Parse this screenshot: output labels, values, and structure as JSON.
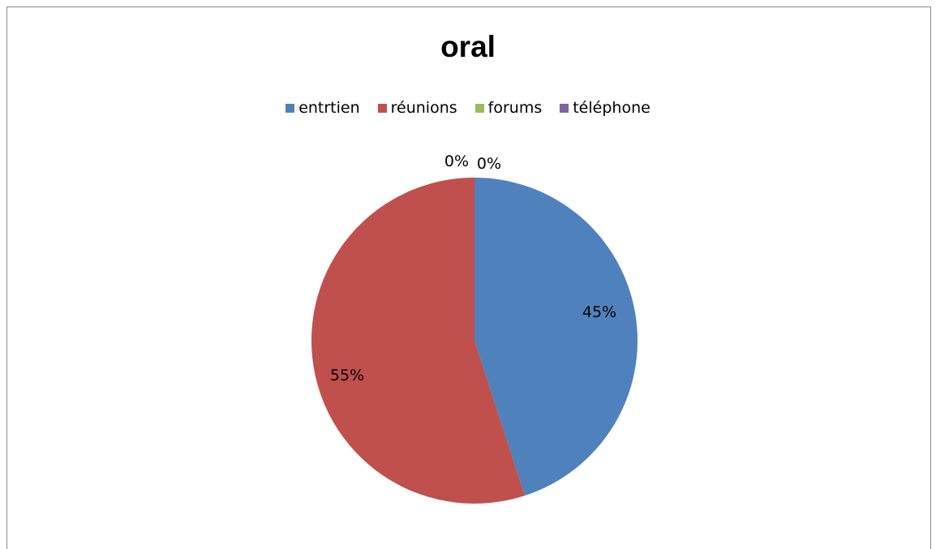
{
  "chart_data": {
    "type": "pie",
    "title": "oral",
    "categories": [
      "entrtien",
      "réunions",
      "forums",
      "téléphone"
    ],
    "values": [
      45,
      55,
      0,
      0
    ],
    "data_labels": [
      "45%",
      "55%",
      "0%",
      "0%"
    ],
    "colors": [
      "#4f81bd",
      "#c0504d",
      "#9bbb59",
      "#8064a2"
    ],
    "legend_position": "top",
    "grid": false
  }
}
